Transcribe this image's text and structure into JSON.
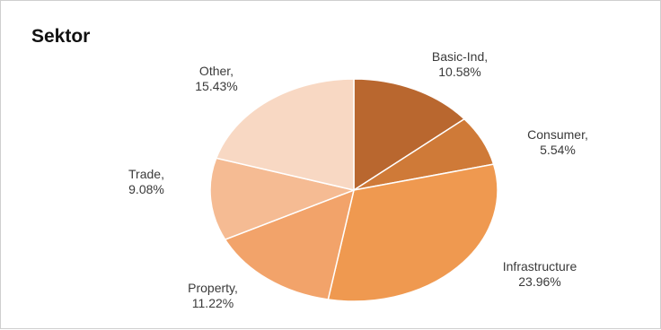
{
  "chart_data": {
    "type": "pie",
    "title": "Sektor",
    "slices": [
      {
        "name": "Basic-Ind,",
        "label": "10.58%",
        "value": 10.58,
        "color": "#b9672f"
      },
      {
        "name": "Consumer,",
        "label": "5.54%",
        "value": 5.54,
        "color": "#cf7a38"
      },
      {
        "name": "Infrastructure",
        "label": "23.96%",
        "value": 23.96,
        "color": "#ef9950"
      },
      {
        "name": "Property,",
        "label": "11.22%",
        "value": 11.22,
        "color": "#f2a36a"
      },
      {
        "name": "Trade,",
        "label": "9.08%",
        "value": 9.08,
        "color": "#f5bb93"
      },
      {
        "name": "Other,",
        "label": "15.43%",
        "value": 15.43,
        "color": "#f8d8c3"
      }
    ]
  }
}
